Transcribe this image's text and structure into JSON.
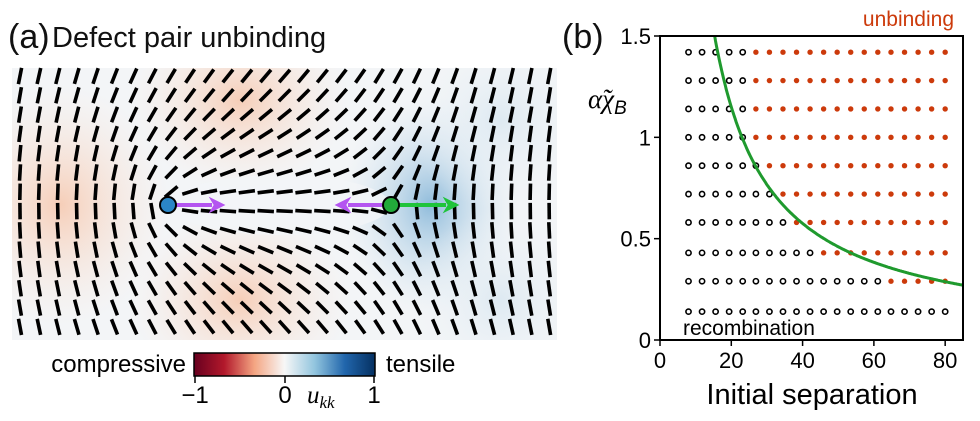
{
  "panel_a": {
    "label": "(a)",
    "title": "Defect pair unbinding",
    "colorbar": {
      "left_label": "compressive",
      "right_label": "tensile",
      "ticks": [
        "−1",
        "0",
        "1"
      ],
      "variable": "u",
      "variable_sub": "kk",
      "range": [
        -1,
        1
      ],
      "colors": [
        "#67001f",
        "#b2182b",
        "#f4a582",
        "#f7f7f7",
        "#92c5de",
        "#2166ac",
        "#053061"
      ]
    },
    "defects": [
      {
        "name": "plus-half-defect",
        "charge": 0.5,
        "color": "#2b86c6"
      },
      {
        "name": "minus-half-defect",
        "charge": -0.5,
        "color": "#22a93a"
      }
    ],
    "arrow_colors": {
      "elastic": "#b455f0",
      "active": "#1fc43b"
    }
  },
  "chart_data": {
    "type": "scatter",
    "panel_label": "(b)",
    "xlabel": "Initial separation",
    "ylabel": "α̃χ",
    "ylabel_sub": "B",
    "xlim": [
      0,
      85
    ],
    "ylim": [
      0,
      1.5
    ],
    "xticks": [
      "0",
      "20",
      "40",
      "60",
      "80"
    ],
    "xtick_values": [
      0,
      20,
      40,
      60,
      80
    ],
    "yticks": [
      "0",
      "0.5",
      "1",
      "1.5"
    ],
    "ytick_values": [
      0,
      0.5,
      1,
      1.5
    ],
    "annotations": {
      "unbinding": "unbinding",
      "recombination": "recombination"
    },
    "colors": {
      "unbinding": "#cc3a0b",
      "recombination": "#000000",
      "boundary": "#1f9a2e"
    },
    "x": [
      8.0,
      11.8,
      15.6,
      19.4,
      23.2,
      26.9,
      30.7,
      34.5,
      38.3,
      42.1,
      45.9,
      49.7,
      53.5,
      57.3,
      61.1,
      64.8,
      68.6,
      72.4,
      76.2,
      80.0
    ],
    "series": [
      {
        "y": 1.42,
        "recombination_count": 5
      },
      {
        "y": 1.28,
        "recombination_count": 5
      },
      {
        "y": 1.14,
        "recombination_count": 5
      },
      {
        "y": 1.0,
        "recombination_count": 5
      },
      {
        "y": 0.86,
        "recombination_count": 6
      },
      {
        "y": 0.72,
        "recombination_count": 7
      },
      {
        "y": 0.58,
        "recombination_count": 8
      },
      {
        "y": 0.43,
        "recombination_count": 10
      },
      {
        "y": 0.29,
        "recombination_count": 15
      },
      {
        "y": 0.14,
        "recombination_count": 20
      }
    ],
    "boundary_curve": {
      "name": "phase boundary",
      "formula": "y = 23 / x",
      "coefficient": 23
    }
  }
}
